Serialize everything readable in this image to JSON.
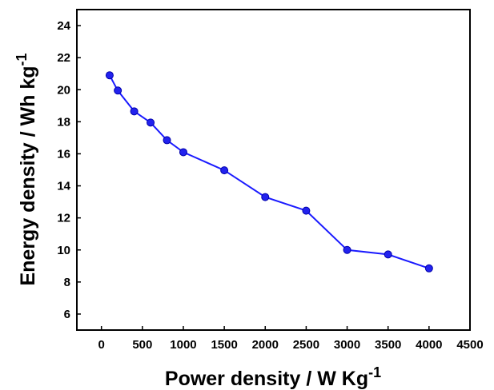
{
  "chart_data": {
    "type": "line",
    "title": "",
    "xlabel": "Power density / W Kg",
    "xlabel_sup": "-1",
    "ylabel": "Energy density / Wh kg",
    "ylabel_sup": "-1",
    "xlim": [
      -300,
      4500
    ],
    "ylim": [
      5,
      25
    ],
    "xticks": [
      0,
      500,
      1000,
      1500,
      2000,
      2500,
      3000,
      3500,
      4000,
      4500
    ],
    "yticks": [
      6,
      8,
      10,
      12,
      14,
      16,
      18,
      20,
      22,
      24
    ],
    "grid": false,
    "legend": "none",
    "line_color": "#1a1aff",
    "marker_color": "#2222ee",
    "series": [
      {
        "x": [
          100,
          200,
          400,
          600,
          800,
          1000,
          1500,
          2000,
          2500,
          3000,
          3500,
          4000
        ],
        "y": [
          20.9,
          19.95,
          18.65,
          17.95,
          16.85,
          16.1,
          14.97,
          13.3,
          12.45,
          10.0,
          9.72,
          8.85
        ]
      }
    ]
  }
}
